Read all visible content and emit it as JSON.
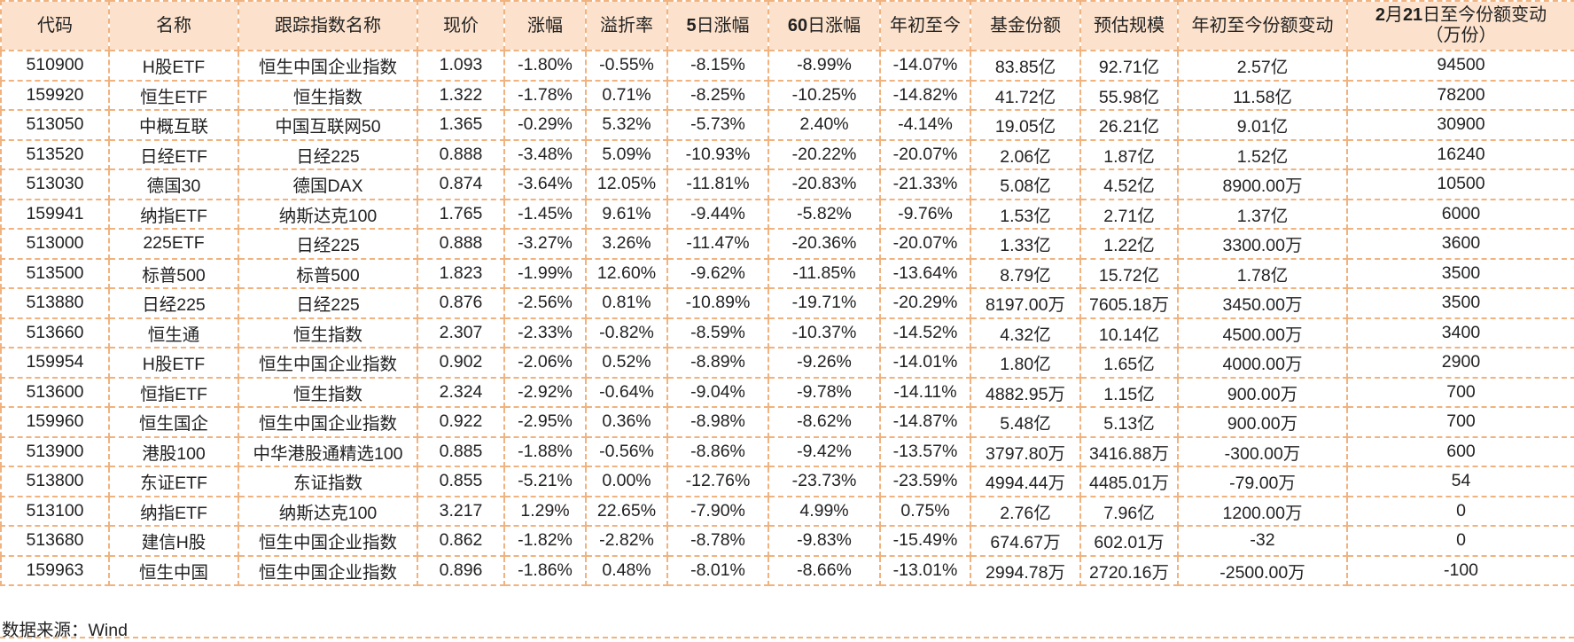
{
  "headers": [
    {
      "text": "代码"
    },
    {
      "text": "名称"
    },
    {
      "text": "跟踪指数名称"
    },
    {
      "text": "现价"
    },
    {
      "text": "涨幅"
    },
    {
      "text": "溢折率"
    },
    {
      "bold": "5",
      "text": "日涨幅"
    },
    {
      "bold": "60",
      "text": "日涨幅"
    },
    {
      "text": "年初至今"
    },
    {
      "text": "基金份额"
    },
    {
      "text": "预估规模"
    },
    {
      "text": "年初至今份额变动"
    },
    {
      "bold": "2",
      "text": "月",
      "bold2": "21",
      "text2": "日至今份额变动",
      "line2": "（万份）"
    }
  ],
  "rows": [
    [
      "510900",
      "H股ETF",
      "恒生中国企业指数",
      "1.093",
      "-1.80%",
      "-0.55%",
      "-8.15%",
      "-8.99%",
      "-14.07%",
      "83.85亿",
      "92.71亿",
      "2.57亿",
      "94500"
    ],
    [
      "159920",
      "恒生ETF",
      "恒生指数",
      "1.322",
      "-1.78%",
      "0.71%",
      "-8.25%",
      "-10.25%",
      "-14.82%",
      "41.72亿",
      "55.98亿",
      "11.58亿",
      "78200"
    ],
    [
      "513050",
      "中概互联",
      "中国互联网50",
      "1.365",
      "-0.29%",
      "5.32%",
      "-5.73%",
      "2.40%",
      "-4.14%",
      "19.05亿",
      "26.21亿",
      "9.01亿",
      "30900"
    ],
    [
      "513520",
      "日经ETF",
      "日经225",
      "0.888",
      "-3.48%",
      "5.09%",
      "-10.93%",
      "-20.22%",
      "-20.07%",
      "2.06亿",
      "1.87亿",
      "1.52亿",
      "16240"
    ],
    [
      "513030",
      "德国30",
      "德国DAX",
      "0.874",
      "-3.64%",
      "12.05%",
      "-11.81%",
      "-20.83%",
      "-21.33%",
      "5.08亿",
      "4.52亿",
      "8900.00万",
      "10500"
    ],
    [
      "159941",
      "纳指ETF",
      "纳斯达克100",
      "1.765",
      "-1.45%",
      "9.61%",
      "-9.44%",
      "-5.82%",
      "-9.76%",
      "1.53亿",
      "2.71亿",
      "1.37亿",
      "6000"
    ],
    [
      "513000",
      "225ETF",
      "日经225",
      "0.888",
      "-3.27%",
      "3.26%",
      "-11.47%",
      "-20.36%",
      "-20.07%",
      "1.33亿",
      "1.22亿",
      "3300.00万",
      "3600"
    ],
    [
      "513500",
      "标普500",
      "标普500",
      "1.823",
      "-1.99%",
      "12.60%",
      "-9.62%",
      "-11.85%",
      "-13.64%",
      "8.79亿",
      "15.72亿",
      "1.78亿",
      "3500"
    ],
    [
      "513880",
      "日经225",
      "日经225",
      "0.876",
      "-2.56%",
      "0.81%",
      "-10.89%",
      "-19.71%",
      "-20.29%",
      "8197.00万",
      "7605.18万",
      "3450.00万",
      "3500"
    ],
    [
      "513660",
      "恒生通",
      "恒生指数",
      "2.307",
      "-2.33%",
      "-0.82%",
      "-8.59%",
      "-10.37%",
      "-14.52%",
      "4.32亿",
      "10.14亿",
      "4500.00万",
      "3400"
    ],
    [
      "159954",
      "H股ETF",
      "恒生中国企业指数",
      "0.902",
      "-2.06%",
      "0.52%",
      "-8.89%",
      "-9.26%",
      "-14.01%",
      "1.80亿",
      "1.65亿",
      "4000.00万",
      "2900"
    ],
    [
      "513600",
      "恒指ETF",
      "恒生指数",
      "2.324",
      "-2.92%",
      "-0.64%",
      "-9.04%",
      "-9.78%",
      "-14.11%",
      "4882.95万",
      "1.15亿",
      "900.00万",
      "700"
    ],
    [
      "159960",
      "恒生国企",
      "恒生中国企业指数",
      "0.922",
      "-2.95%",
      "0.36%",
      "-8.98%",
      "-8.62%",
      "-14.87%",
      "5.48亿",
      "5.13亿",
      "900.00万",
      "700"
    ],
    [
      "513900",
      "港股100",
      "中华港股通精选100",
      "0.885",
      "-1.88%",
      "-0.56%",
      "-8.86%",
      "-9.42%",
      "-13.57%",
      "3797.80万",
      "3416.88万",
      "-300.00万",
      "600"
    ],
    [
      "513800",
      "东证ETF",
      "东证指数",
      "0.855",
      "-5.21%",
      "0.00%",
      "-12.76%",
      "-23.73%",
      "-23.59%",
      "4994.44万",
      "4485.01万",
      "-79.00万",
      "54"
    ],
    [
      "513100",
      "纳指ETF",
      "纳斯达克100",
      "3.217",
      "1.29%",
      "22.65%",
      "-7.90%",
      "4.99%",
      "0.75%",
      "2.76亿",
      "7.96亿",
      "1200.00万",
      "0"
    ],
    [
      "513680",
      "建信H股",
      "恒生中国企业指数",
      "0.862",
      "-1.82%",
      "-2.82%",
      "-8.78%",
      "-9.83%",
      "-15.49%",
      "674.67万",
      "602.01万",
      "-32",
      "0"
    ],
    [
      "159963",
      "恒生中国",
      "恒生中国企业指数",
      "0.896",
      "-1.86%",
      "0.48%",
      "-8.01%",
      "-8.66%",
      "-13.01%",
      "2994.78万",
      "2720.16万",
      "-2500.00万",
      "-100"
    ]
  ],
  "source": "数据来源：Wind"
}
